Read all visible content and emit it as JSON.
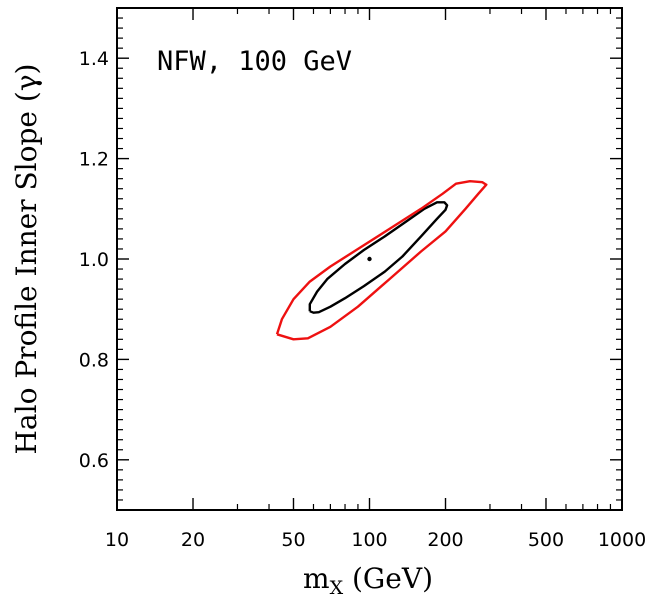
{
  "chart_data": {
    "type": "contour",
    "annotation": "NFW, 100 GeV",
    "xlabel_main": "m",
    "xlabel_sub": "X",
    "xlabel_unit": " (GeV)",
    "ylabel": "Halo Profile Inner Slope (γ)",
    "x_scale": "log",
    "xlim": [
      10,
      1000
    ],
    "ylim": [
      0.5,
      1.5
    ],
    "x_ticks": [
      10,
      20,
      50,
      100,
      200,
      500,
      1000
    ],
    "x_tick_labels": [
      "10",
      "20",
      "50",
      "100",
      "200",
      "500",
      "1000"
    ],
    "y_ticks": [
      0.6,
      0.8,
      1.0,
      1.2,
      1.4
    ],
    "y_tick_labels": [
      "0.6",
      "0.8",
      "1.0",
      "1.2",
      "1.4"
    ],
    "grid": false,
    "best_fit_point": {
      "x": 100,
      "y": 1.0
    },
    "series": [
      {
        "color": "#000000",
        "points": [
          [
            58,
            0.896
          ],
          [
            60,
            0.893
          ],
          [
            63,
            0.894
          ],
          [
            70,
            0.905
          ],
          [
            80,
            0.922
          ],
          [
            95,
            0.946
          ],
          [
            115,
            0.975
          ],
          [
            135,
            1.005
          ],
          [
            160,
            1.045
          ],
          [
            185,
            1.08
          ],
          [
            200,
            1.098
          ],
          [
            203,
            1.107
          ],
          [
            198,
            1.113
          ],
          [
            185,
            1.113
          ],
          [
            165,
            1.1
          ],
          [
            140,
            1.075
          ],
          [
            115,
            1.045
          ],
          [
            95,
            1.018
          ],
          [
            80,
            0.99
          ],
          [
            68,
            0.96
          ],
          [
            62,
            0.935
          ],
          [
            58,
            0.91
          ],
          [
            58,
            0.896
          ]
        ]
      },
      {
        "color": "#ee1111",
        "points": [
          [
            43,
            0.85
          ],
          [
            50,
            0.84
          ],
          [
            57,
            0.842
          ],
          [
            70,
            0.865
          ],
          [
            90,
            0.905
          ],
          [
            120,
            0.96
          ],
          [
            160,
            1.015
          ],
          [
            200,
            1.055
          ],
          [
            240,
            1.1
          ],
          [
            270,
            1.13
          ],
          [
            290,
            1.148
          ],
          [
            280,
            1.153
          ],
          [
            250,
            1.155
          ],
          [
            220,
            1.15
          ],
          [
            195,
            1.13
          ],
          [
            160,
            1.1
          ],
          [
            120,
            1.06
          ],
          [
            90,
            1.02
          ],
          [
            70,
            0.985
          ],
          [
            58,
            0.955
          ],
          [
            50,
            0.92
          ],
          [
            45,
            0.88
          ],
          [
            43,
            0.85
          ]
        ]
      }
    ]
  }
}
